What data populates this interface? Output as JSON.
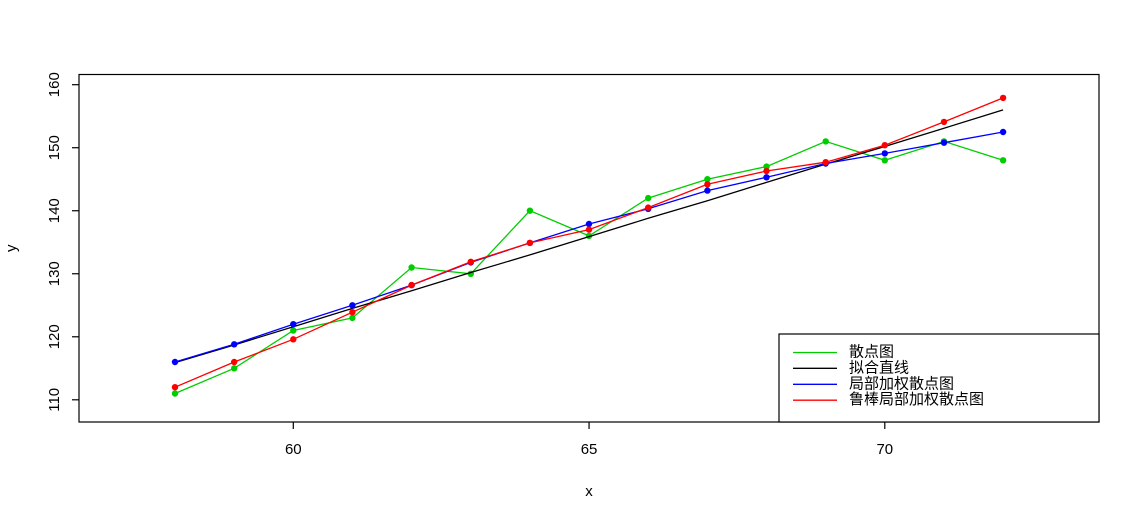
{
  "chart_data": {
    "type": "line",
    "title": "",
    "xlabel": "x",
    "ylabel": "y",
    "x": [
      58,
      59,
      60,
      61,
      62,
      63,
      64,
      65,
      66,
      67,
      68,
      69,
      70,
      71,
      72
    ],
    "x_ticks": [
      60,
      65,
      70
    ],
    "y_ticks": [
      110,
      120,
      130,
      140,
      150,
      160
    ],
    "xlim": [
      56.4,
      73.6
    ],
    "ylim": [
      106.5,
      161.6
    ],
    "grid": "off",
    "legend_position": "bottomright",
    "series": [
      {
        "name": "散点图",
        "color": "#00CD00",
        "markers": true,
        "values": [
          111,
          115,
          121,
          123,
          131,
          130,
          140,
          136,
          142,
          145,
          147,
          151,
          148,
          151,
          148
        ]
      },
      {
        "name": "拟合直线",
        "color": "#000000",
        "markers": false,
        "values": [
          115.9,
          118.7,
          121.6,
          124.5,
          127.3,
          130.2,
          133.0,
          135.9,
          138.8,
          141.6,
          144.5,
          147.4,
          150.2,
          153.1,
          156.0
        ]
      },
      {
        "name": "局部加权散点图",
        "color": "#0000FF",
        "markers": true,
        "values": [
          116.0,
          118.8,
          122.0,
          125.0,
          128.2,
          131.8,
          134.9,
          137.9,
          140.3,
          143.2,
          145.3,
          147.5,
          149.1,
          150.8,
          152.5
        ]
      },
      {
        "name": "鲁棒局部加权散点图",
        "color": "#FF0000",
        "markers": true,
        "values": [
          112.0,
          116.0,
          119.6,
          123.9,
          128.2,
          131.9,
          134.9,
          137.0,
          140.5,
          144.2,
          146.3,
          147.7,
          150.4,
          154.1,
          157.9
        ]
      }
    ]
  }
}
